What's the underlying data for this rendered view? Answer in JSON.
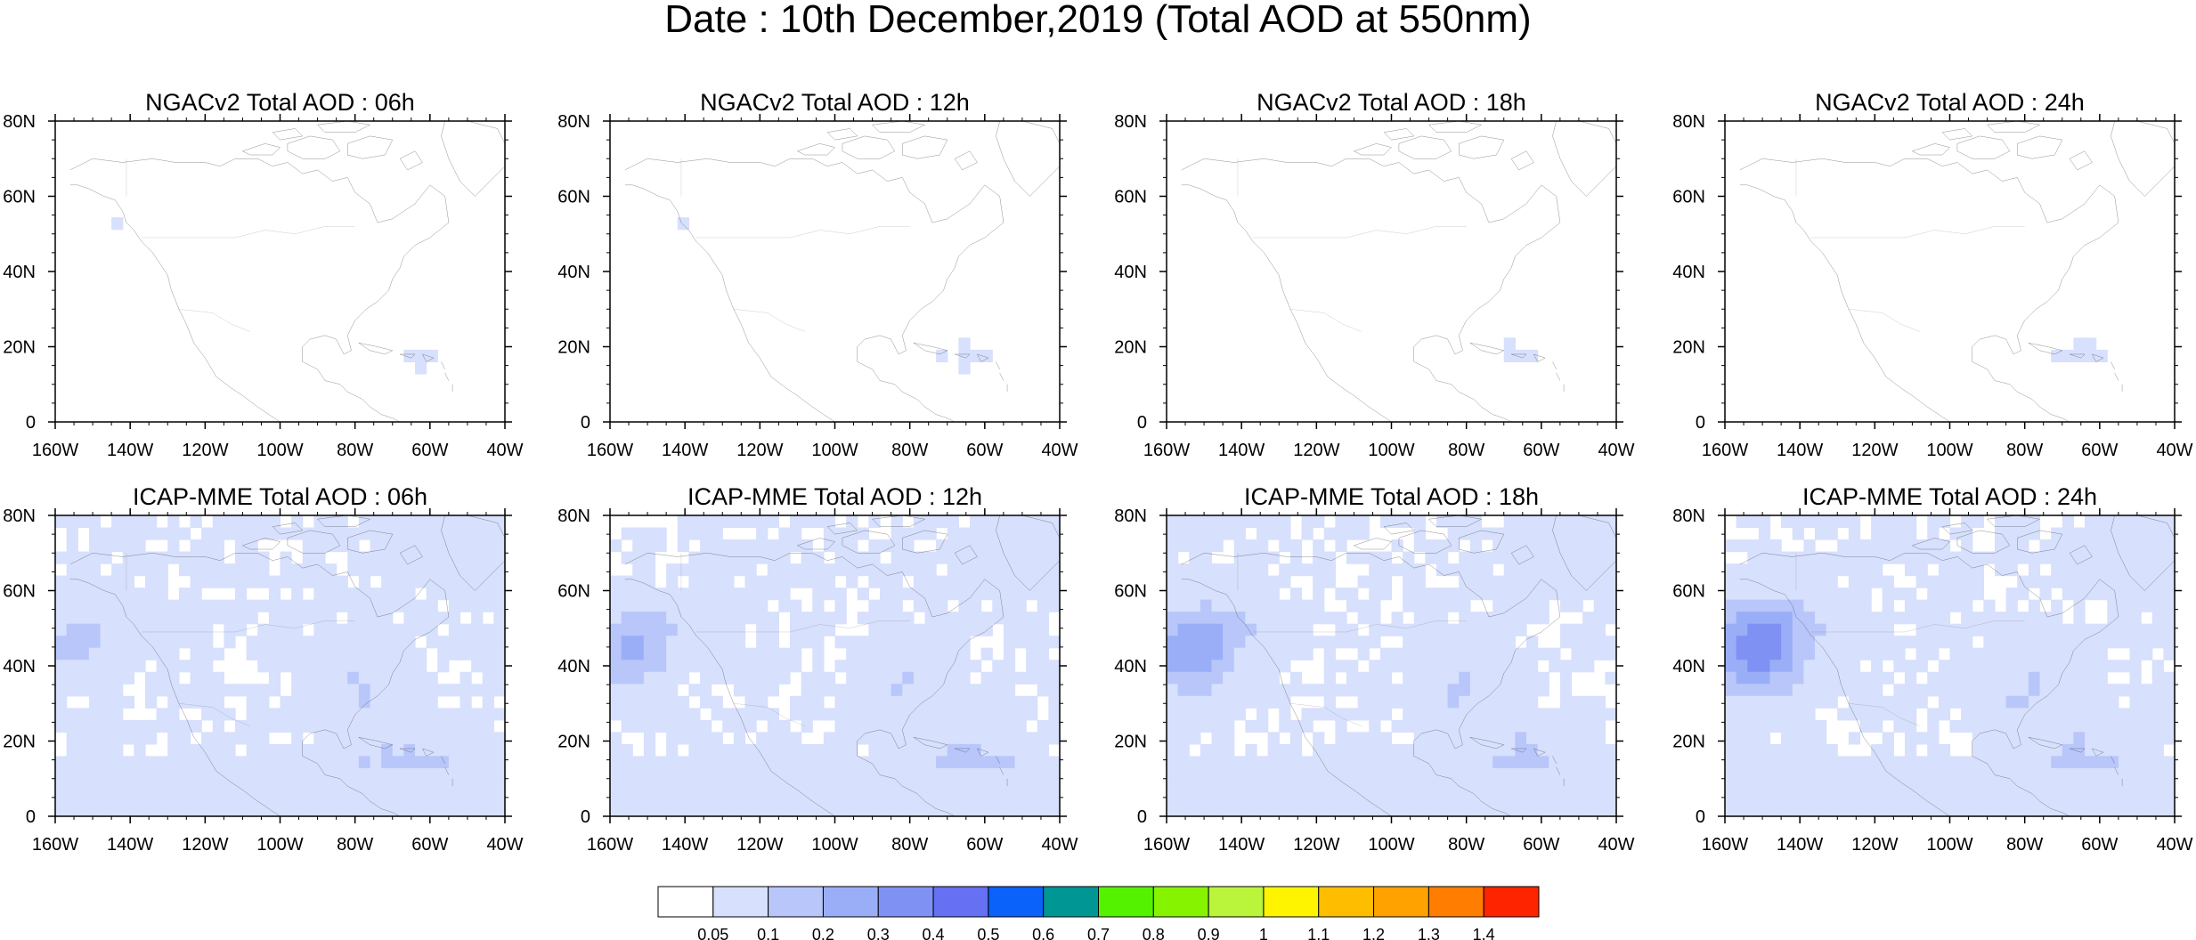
{
  "title": "Date : 10th December,2019 (Total AOD at 550nm)",
  "panels": [
    {
      "title": "NGACv2 Total AOD : 06h",
      "model": "NGACv2",
      "hour": "06h"
    },
    {
      "title": "NGACv2 Total AOD : 12h",
      "model": "NGACv2",
      "hour": "12h"
    },
    {
      "title": "NGACv2 Total AOD : 18h",
      "model": "NGACv2",
      "hour": "18h"
    },
    {
      "title": "NGACv2 Total AOD : 24h",
      "model": "NGACv2",
      "hour": "24h"
    },
    {
      "title": "ICAP-MME Total AOD : 06h",
      "model": "ICAP-MME",
      "hour": "06h"
    },
    {
      "title": "ICAP-MME Total AOD : 12h",
      "model": "ICAP-MME",
      "hour": "12h"
    },
    {
      "title": "ICAP-MME Total AOD : 18h",
      "model": "ICAP-MME",
      "hour": "18h"
    },
    {
      "title": "ICAP-MME Total AOD : 24h",
      "model": "ICAP-MME",
      "hour": "24h"
    }
  ],
  "map_extent": {
    "lon": [
      -160,
      -40
    ],
    "lat": [
      0,
      80
    ]
  },
  "lat_ticks": [
    "80N",
    "60N",
    "40N",
    "20N",
    "0"
  ],
  "lon_ticks": [
    "160W",
    "140W",
    "120W",
    "100W",
    "80W",
    "60W",
    "40W"
  ],
  "colorbar": {
    "labels": [
      "0.05",
      "0.1",
      "0.2",
      "0.3",
      "0.4",
      "0.5",
      "0.6",
      "0.7",
      "0.8",
      "0.9",
      "1",
      "1.1",
      "1.2",
      "1.3",
      "1.4"
    ],
    "colors": [
      "#ffffff",
      "#d7e0fc",
      "#b8c6fa",
      "#9aaef8",
      "#8091f4",
      "#6570f2",
      "#0a62fa",
      "#009694",
      "#55f200",
      "#86f300",
      "#baf43b",
      "#fff400",
      "#ffbd00",
      "#ffa200",
      "#ff7d00",
      "#ff2400"
    ]
  }
}
